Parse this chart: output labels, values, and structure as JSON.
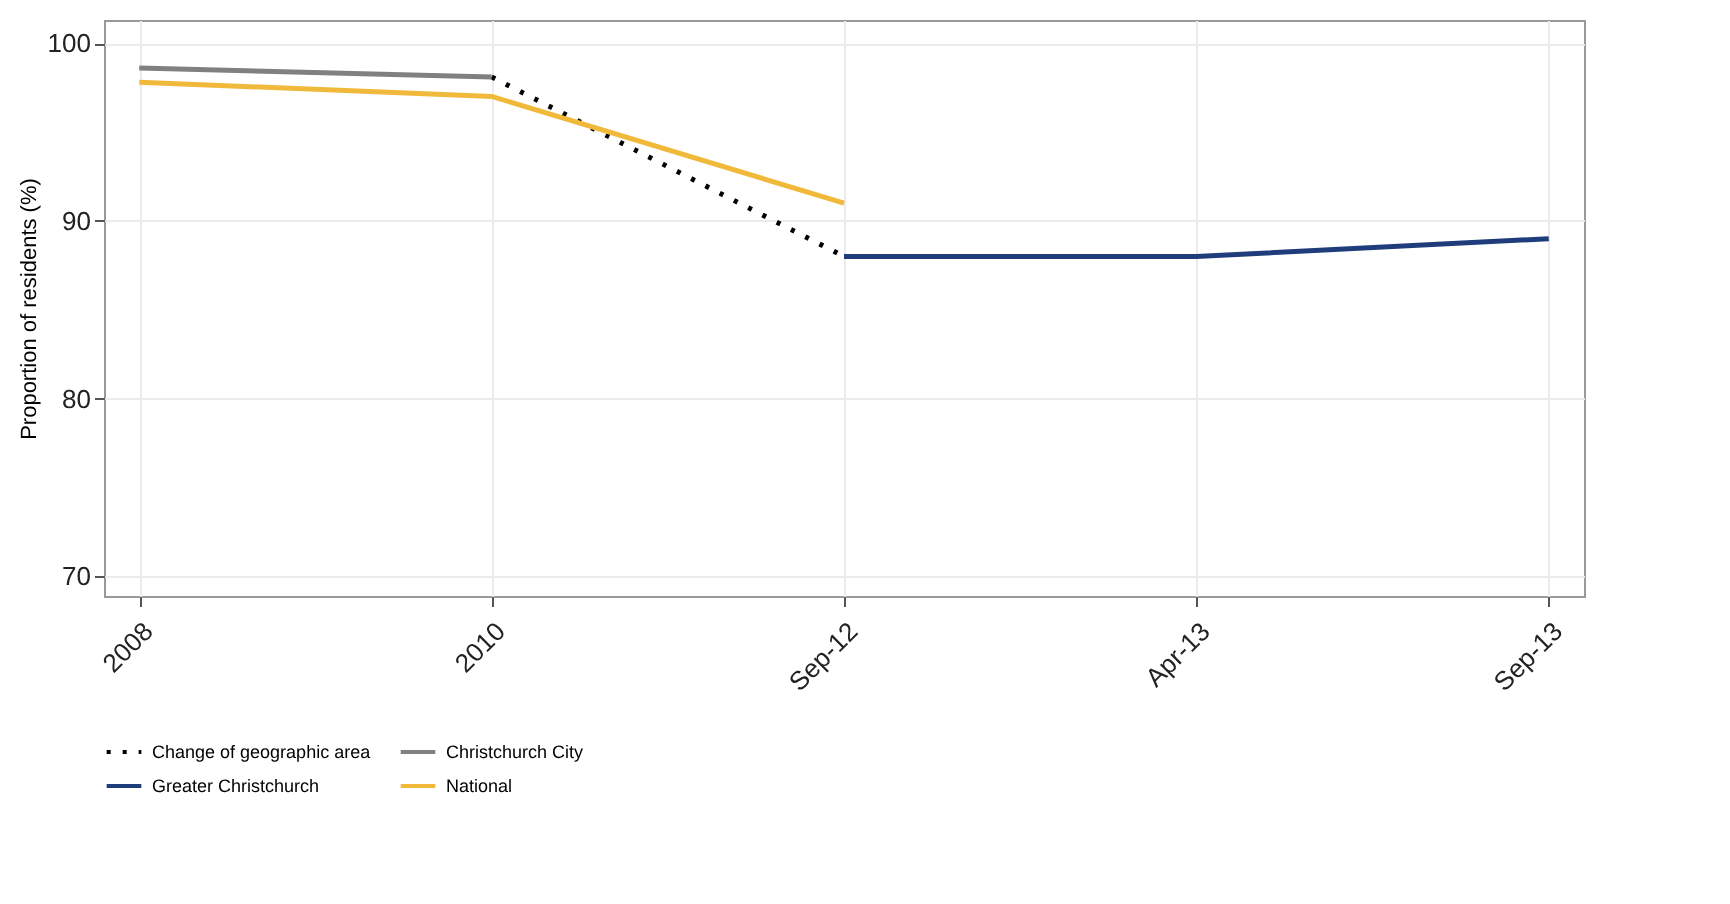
{
  "chart_data": {
    "type": "line",
    "ylabel": "Proportion of residents (%)",
    "categories": [
      "2008",
      "2010",
      "Sep-12",
      "Apr-13",
      "Sep-13"
    ],
    "series": [
      {
        "name": "Change of geographic area",
        "color": "#000000",
        "line_style": "dotted",
        "values": [
          null,
          98.1,
          88.0,
          null,
          null
        ]
      },
      {
        "name": "Christchurch City",
        "color": "#808080",
        "line_style": "solid",
        "values": [
          98.6,
          98.1,
          null,
          null,
          null
        ]
      },
      {
        "name": "Greater Christchurch",
        "color": "#1f3d7a",
        "line_style": "solid",
        "values": [
          null,
          null,
          88.0,
          88.0,
          89.0
        ]
      },
      {
        "name": "National",
        "color": "#f0b93a",
        "line_style": "solid",
        "values": [
          97.8,
          97.0,
          91.0,
          null,
          null
        ]
      }
    ],
    "ylim": [
      68.9,
      101.3
    ],
    "yticks": [
      70,
      80,
      90,
      100
    ],
    "grid": true,
    "legend": "bottom"
  }
}
